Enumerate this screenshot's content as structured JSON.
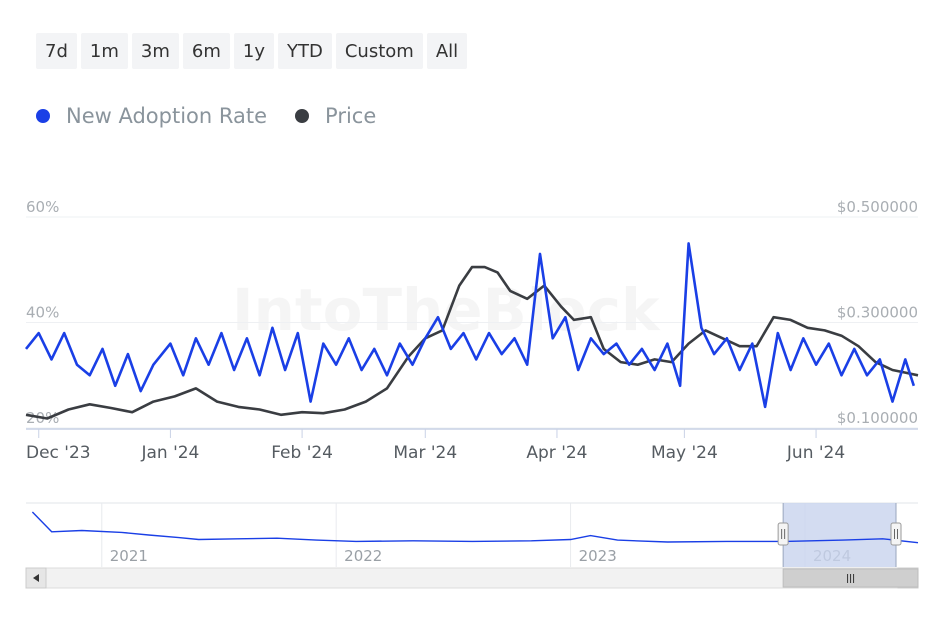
{
  "range_selector": {
    "buttons": [
      "7d",
      "1m",
      "3m",
      "6m",
      "1y",
      "YTD",
      "Custom",
      "All"
    ]
  },
  "watermark": "IntoTheBlock",
  "colors": {
    "adoption": "#1a3fe6",
    "price": "#3a3d42",
    "grid": "#eef0f3",
    "navigator_mask": "#c8d3ee"
  },
  "chart_data": {
    "type": "line",
    "legend_position": "top-left",
    "x_ticks": [
      "Dec '23",
      "Jan '24",
      "Feb '24",
      "Mar '24",
      "Apr '24",
      "May '24",
      "Jun '24"
    ],
    "x_range": [
      "2023-11-28",
      "2024-06-25"
    ],
    "y_left": {
      "ticks": [
        "60%",
        "40%",
        "20%"
      ],
      "range": [
        20,
        60
      ]
    },
    "y_right": {
      "ticks": [
        "$0.500000",
        "$0.300000",
        "$0.100000"
      ],
      "range": [
        0.1,
        0.5
      ]
    },
    "series": [
      {
        "name": "New Adoption Rate",
        "axis": "left",
        "color": "#1a3fe6",
        "points": [
          [
            "2023-11-28",
            35
          ],
          [
            "2023-12-01",
            38
          ],
          [
            "2023-12-04",
            33
          ],
          [
            "2023-12-07",
            38
          ],
          [
            "2023-12-10",
            32
          ],
          [
            "2023-12-13",
            30
          ],
          [
            "2023-12-16",
            35
          ],
          [
            "2023-12-19",
            28
          ],
          [
            "2023-12-22",
            34
          ],
          [
            "2023-12-25",
            27
          ],
          [
            "2023-12-28",
            32
          ],
          [
            "2024-01-01",
            36
          ],
          [
            "2024-01-04",
            30
          ],
          [
            "2024-01-07",
            37
          ],
          [
            "2024-01-10",
            32
          ],
          [
            "2024-01-13",
            38
          ],
          [
            "2024-01-16",
            31
          ],
          [
            "2024-01-19",
            37
          ],
          [
            "2024-01-22",
            30
          ],
          [
            "2024-01-25",
            39
          ],
          [
            "2024-01-28",
            31
          ],
          [
            "2024-01-31",
            38
          ],
          [
            "2024-02-03",
            25
          ],
          [
            "2024-02-06",
            36
          ],
          [
            "2024-02-09",
            32
          ],
          [
            "2024-02-12",
            37
          ],
          [
            "2024-02-15",
            31
          ],
          [
            "2024-02-18",
            35
          ],
          [
            "2024-02-21",
            30
          ],
          [
            "2024-02-24",
            36
          ],
          [
            "2024-02-27",
            32
          ],
          [
            "2024-03-01",
            37
          ],
          [
            "2024-03-04",
            41
          ],
          [
            "2024-03-07",
            35
          ],
          [
            "2024-03-10",
            38
          ],
          [
            "2024-03-13",
            33
          ],
          [
            "2024-03-16",
            38
          ],
          [
            "2024-03-19",
            34
          ],
          [
            "2024-03-22",
            37
          ],
          [
            "2024-03-25",
            32
          ],
          [
            "2024-03-28",
            53
          ],
          [
            "2024-03-31",
            37
          ],
          [
            "2024-04-03",
            41
          ],
          [
            "2024-04-06",
            31
          ],
          [
            "2024-04-09",
            37
          ],
          [
            "2024-04-12",
            34
          ],
          [
            "2024-04-15",
            36
          ],
          [
            "2024-04-18",
            32
          ],
          [
            "2024-04-21",
            35
          ],
          [
            "2024-04-24",
            31
          ],
          [
            "2024-04-27",
            36
          ],
          [
            "2024-04-30",
            28
          ],
          [
            "2024-05-02",
            55
          ],
          [
            "2024-05-05",
            39
          ],
          [
            "2024-05-08",
            34
          ],
          [
            "2024-05-11",
            37
          ],
          [
            "2024-05-14",
            31
          ],
          [
            "2024-05-17",
            36
          ],
          [
            "2024-05-20",
            24
          ],
          [
            "2024-05-23",
            38
          ],
          [
            "2024-05-26",
            31
          ],
          [
            "2024-05-29",
            37
          ],
          [
            "2024-06-01",
            32
          ],
          [
            "2024-06-04",
            36
          ],
          [
            "2024-06-07",
            30
          ],
          [
            "2024-06-10",
            35
          ],
          [
            "2024-06-13",
            30
          ],
          [
            "2024-06-16",
            33
          ],
          [
            "2024-06-19",
            25
          ],
          [
            "2024-06-22",
            33
          ],
          [
            "2024-06-24",
            28
          ]
        ]
      },
      {
        "name": "Price",
        "axis": "right",
        "color": "#3a3d42",
        "points": [
          [
            "2023-11-28",
            0.125
          ],
          [
            "2023-12-03",
            0.118
          ],
          [
            "2023-12-08",
            0.135
          ],
          [
            "2023-12-13",
            0.145
          ],
          [
            "2023-12-18",
            0.138
          ],
          [
            "2023-12-23",
            0.13
          ],
          [
            "2023-12-28",
            0.15
          ],
          [
            "2024-01-02",
            0.16
          ],
          [
            "2024-01-07",
            0.175
          ],
          [
            "2024-01-12",
            0.15
          ],
          [
            "2024-01-17",
            0.14
          ],
          [
            "2024-01-22",
            0.135
          ],
          [
            "2024-01-27",
            0.125
          ],
          [
            "2024-02-01",
            0.13
          ],
          [
            "2024-02-06",
            0.128
          ],
          [
            "2024-02-11",
            0.135
          ],
          [
            "2024-02-16",
            0.15
          ],
          [
            "2024-02-21",
            0.175
          ],
          [
            "2024-02-26",
            0.235
          ],
          [
            "2024-03-01",
            0.27
          ],
          [
            "2024-03-05",
            0.285
          ],
          [
            "2024-03-09",
            0.37
          ],
          [
            "2024-03-12",
            0.405
          ],
          [
            "2024-03-15",
            0.405
          ],
          [
            "2024-03-18",
            0.395
          ],
          [
            "2024-03-21",
            0.36
          ],
          [
            "2024-03-25",
            0.345
          ],
          [
            "2024-03-29",
            0.37
          ],
          [
            "2024-04-02",
            0.33
          ],
          [
            "2024-04-05",
            0.305
          ],
          [
            "2024-04-09",
            0.31
          ],
          [
            "2024-04-12",
            0.25
          ],
          [
            "2024-04-16",
            0.225
          ],
          [
            "2024-04-20",
            0.22
          ],
          [
            "2024-04-24",
            0.23
          ],
          [
            "2024-04-28",
            0.225
          ],
          [
            "2024-05-02",
            0.26
          ],
          [
            "2024-05-06",
            0.285
          ],
          [
            "2024-05-10",
            0.27
          ],
          [
            "2024-05-14",
            0.255
          ],
          [
            "2024-05-18",
            0.255
          ],
          [
            "2024-05-22",
            0.31
          ],
          [
            "2024-05-26",
            0.305
          ],
          [
            "2024-05-30",
            0.29
          ],
          [
            "2024-06-03",
            0.285
          ],
          [
            "2024-06-07",
            0.275
          ],
          [
            "2024-06-11",
            0.255
          ],
          [
            "2024-06-15",
            0.225
          ],
          [
            "2024-06-19",
            0.21
          ],
          [
            "2024-06-22",
            0.205
          ],
          [
            "2024-06-25",
            0.2
          ]
        ]
      }
    ],
    "navigator": {
      "x_labels": [
        "2021",
        "2022",
        "2023",
        "2024"
      ],
      "points": [
        [
          "2020-09-15",
          86
        ],
        [
          "2020-10-15",
          55
        ],
        [
          "2020-12-01",
          57
        ],
        [
          "2021-02-01",
          54
        ],
        [
          "2021-03-15",
          50
        ],
        [
          "2021-05-01",
          46
        ],
        [
          "2021-06-01",
          43
        ],
        [
          "2021-08-01",
          44
        ],
        [
          "2021-10-01",
          45
        ],
        [
          "2021-12-01",
          42
        ],
        [
          "2022-02-01",
          40
        ],
        [
          "2022-05-01",
          41
        ],
        [
          "2022-08-01",
          40
        ],
        [
          "2022-11-01",
          41
        ],
        [
          "2023-01-01",
          43
        ],
        [
          "2023-02-01",
          49
        ],
        [
          "2023-03-15",
          42
        ],
        [
          "2023-06-01",
          39
        ],
        [
          "2023-09-01",
          40
        ],
        [
          "2023-12-01",
          40
        ],
        [
          "2024-03-01",
          42
        ],
        [
          "2024-05-01",
          44
        ],
        [
          "2024-06-25",
          38
        ]
      ],
      "y_range": [
        0,
        100
      ],
      "selected_range": [
        "2023-11-28",
        "2024-06-25"
      ]
    }
  }
}
